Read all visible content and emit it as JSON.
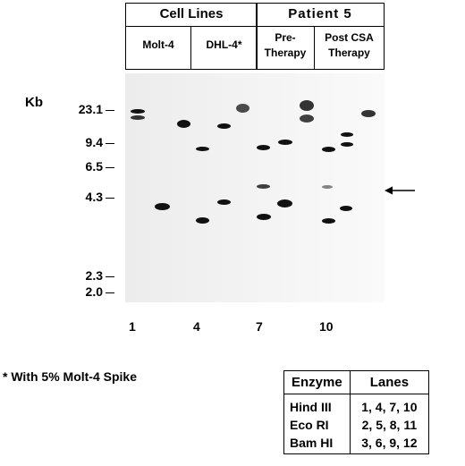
{
  "header": {
    "cell_lines": "Cell Lines",
    "patient": "Patient 5",
    "molt": "Molt-4",
    "dhl": "DHL-4*",
    "pre_line1": "Pre-",
    "pre_line2": "Therapy",
    "post_line1": "Post CSA",
    "post_line2": "Therapy"
  },
  "size_axis": {
    "unit": "Kb",
    "markers": [
      "23.1",
      "9.4",
      "6.5",
      "4.3",
      "2.3",
      "2.0"
    ]
  },
  "lane_numbers": [
    "1",
    "4",
    "7",
    "10"
  ],
  "footnote": "* With 5% Molt-4 Spike",
  "enzyme_table": {
    "headers": [
      "Enzyme",
      "Lanes"
    ],
    "rows": [
      {
        "enzyme": "Hind III",
        "lanes": "1, 4, 7, 10"
      },
      {
        "enzyme": "Eco RI",
        "lanes": "2, 5, 8, 11"
      },
      {
        "enzyme": "Bam HI",
        "lanes": "3, 6, 9, 12"
      }
    ]
  }
}
